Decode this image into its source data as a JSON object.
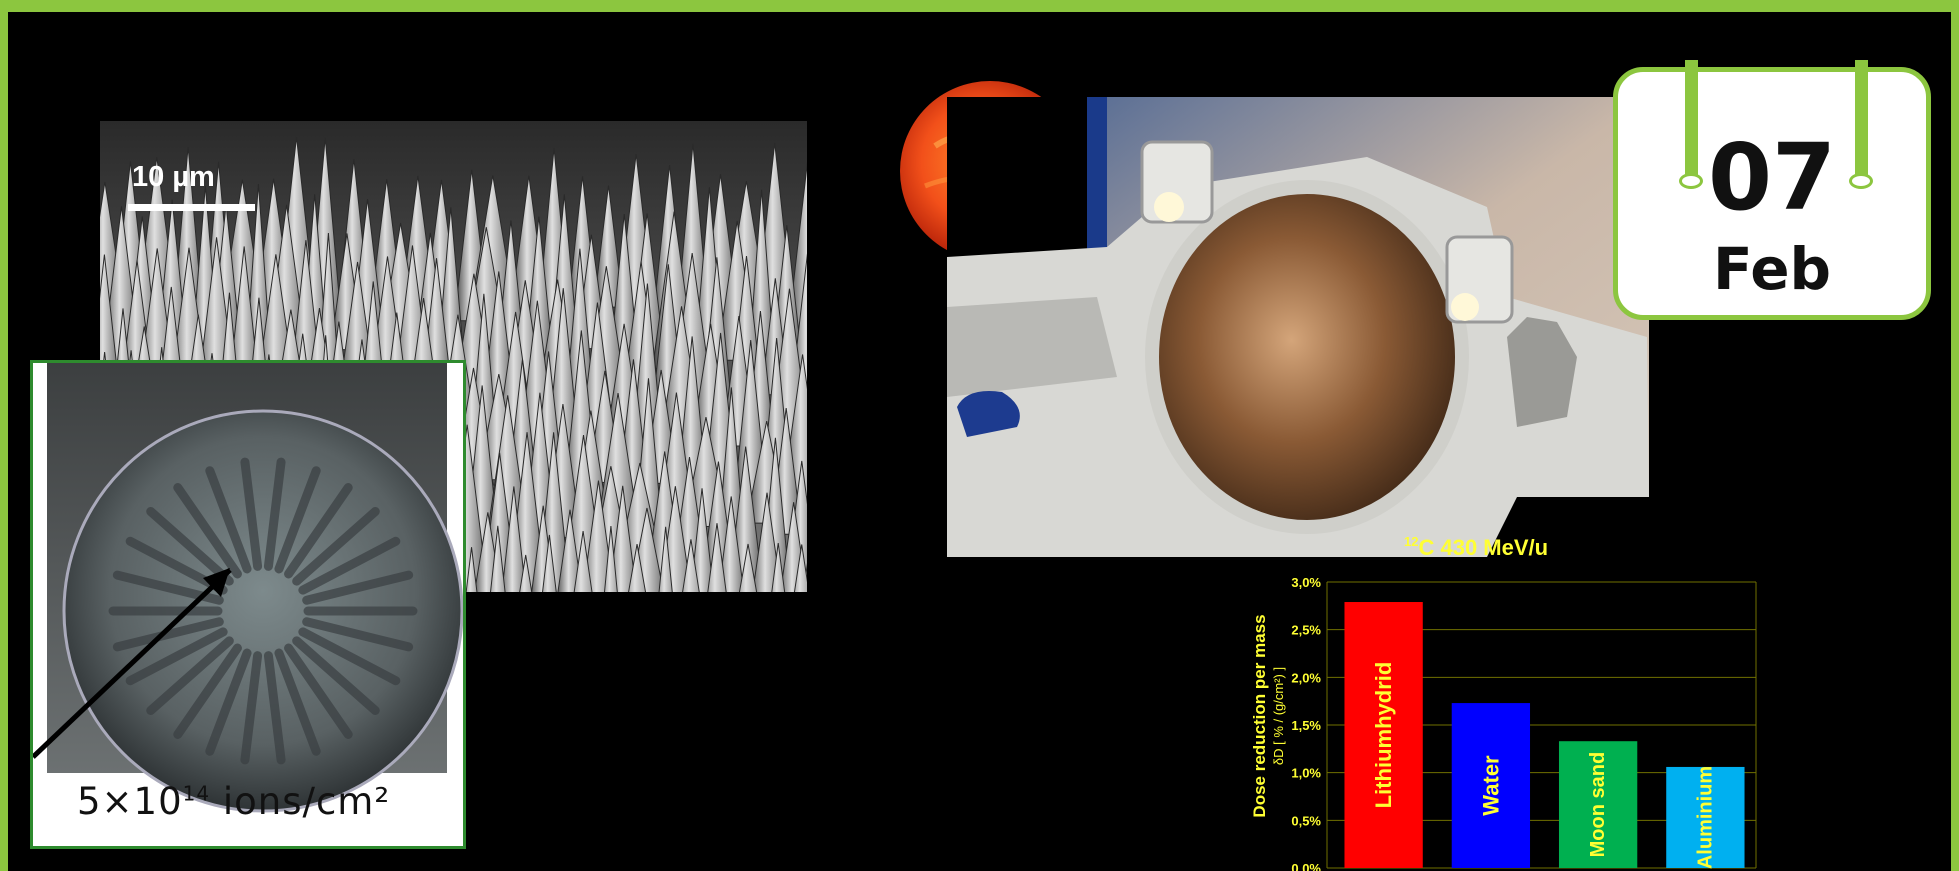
{
  "colors": {
    "frame": "#8cc63f",
    "background": "#000000",
    "chart_text": "#ffff33"
  },
  "sem_image": {
    "scale_label": "10 µm"
  },
  "inset_image": {
    "caption_base": "5×10",
    "caption_exp": "14",
    "caption_unit": " ions/cm²"
  },
  "date_tag": {
    "day": "07",
    "month": "Feb"
  },
  "chart_data": {
    "type": "bar",
    "title_sup": "12",
    "title": "C  430 MeV/u",
    "ylabel": "Dose reduction per mass",
    "ylabel2": "δD  [ % / (g/cm²) ]",
    "ylim": [
      0,
      3.0
    ],
    "yticks": [
      "0,0%",
      "0,5%",
      "1,0%",
      "1,5%",
      "2,0%",
      "2,5%",
      "3,0%"
    ],
    "categories": [
      "Lithiumhydrid",
      "Water",
      "Moon sand",
      "Aluminium"
    ],
    "values": [
      2.79,
      1.73,
      1.33,
      1.06
    ],
    "bar_colors": [
      "#ff0000",
      "#0000ff",
      "#00b050",
      "#00b0f0"
    ],
    "label_colors": [
      "#ffff33",
      "#ffff33",
      "#ffff33",
      "#ffff33"
    ],
    "grid": true
  }
}
